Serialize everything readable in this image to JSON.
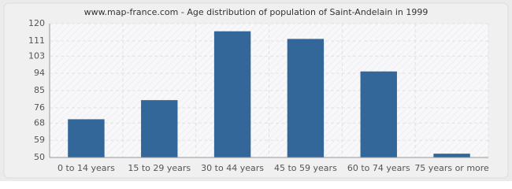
{
  "chart_data": {
    "type": "bar",
    "title": "www.map-france.com - Age distribution of population of Saint-Andelain in 1999",
    "categories": [
      "0 to 14 years",
      "15 to 29 years",
      "30 to 44 years",
      "45 to 59 years",
      "60 to 74 years",
      "75 years or more"
    ],
    "values": [
      70,
      80,
      116,
      112,
      95,
      52
    ],
    "color": "#336699",
    "ylim": [
      50,
      120
    ],
    "yticks": [
      50,
      59,
      68,
      76,
      85,
      94,
      103,
      111,
      120
    ],
    "grid": true
  }
}
